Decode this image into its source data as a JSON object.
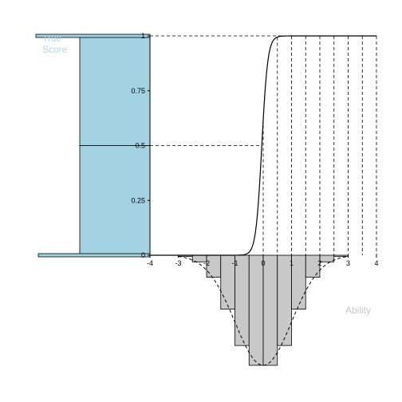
{
  "chart_data": {
    "type": "line",
    "title": "",
    "xlabel": "Ability",
    "ylabel_lines": [
      "True",
      "Score"
    ],
    "xlim": [
      -4,
      4
    ],
    "ylim": [
      0,
      1
    ],
    "x_ticks": [
      "-4",
      "-3",
      "-2",
      "-1",
      "0",
      "1",
      "2",
      "3",
      "4"
    ],
    "y_ticks": [
      "0",
      "0.25",
      "0.5",
      "0.75",
      "1"
    ],
    "icc": {
      "discrimination": 9.5,
      "difficulty": -0.05
    },
    "ability_histogram": {
      "bin_edges": [
        -3,
        -2.5,
        -2,
        -1.5,
        -1,
        -0.5,
        0,
        0.5,
        1,
        1.5,
        2,
        2.5,
        3
      ],
      "densities": [
        0.01,
        0.06,
        0.2,
        0.49,
        0.82,
        1.0,
        1.0,
        0.82,
        0.49,
        0.2,
        0.06,
        0.01
      ]
    },
    "score_histogram": {
      "bin_edges": [
        0,
        0.5,
        1
      ],
      "densities": [
        0.5,
        0.5
      ]
    },
    "guide_x_positions": [
      0,
      0.5,
      1,
      1.5,
      2,
      2.5,
      3,
      3.5,
      4
    ],
    "guide_y_levels": [
      0.5,
      1
    ],
    "colors": {
      "curve": "#000000",
      "score_bars": "#a3d2e3",
      "ability_bars": "#c8c8c8",
      "axis_title": "#b3d8ea",
      "xlabel": "#c8c8c8"
    }
  }
}
